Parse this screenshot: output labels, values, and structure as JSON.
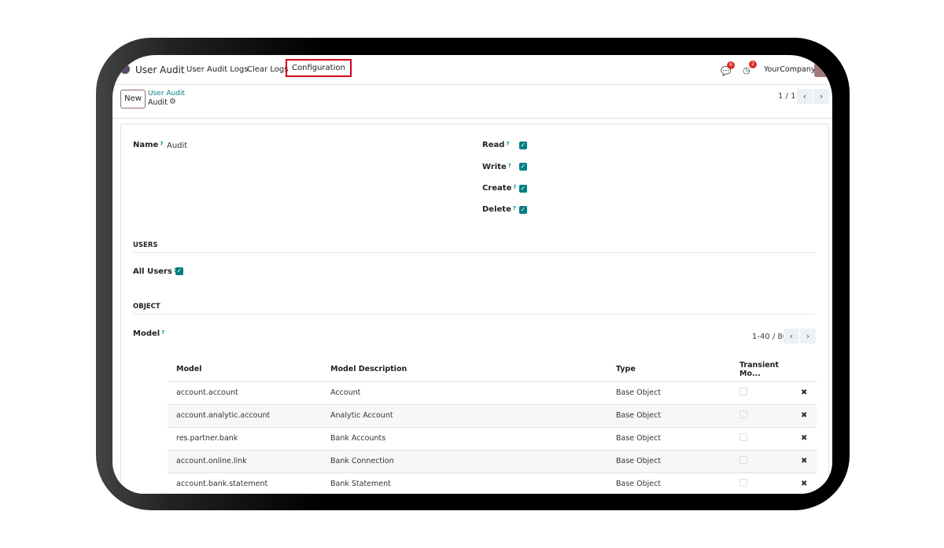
{
  "nav": {
    "app": "User Audit",
    "items": [
      "User Audit Logs",
      "Clear Logs",
      "Configuration"
    ],
    "messages_count": "6",
    "activities_count": "2",
    "company": "YourCompany"
  },
  "control": {
    "new": "New",
    "breadcrumb_parent": "User Audit",
    "breadcrumb_current": "Audit",
    "pager": "1 / 1"
  },
  "form": {
    "name_label": "Name",
    "name_value": "Audit",
    "help": "?",
    "perms": [
      {
        "label": "Read",
        "checked": true
      },
      {
        "label": "Write",
        "checked": true
      },
      {
        "label": "Create",
        "checked": true
      },
      {
        "label": "Delete",
        "checked": true
      }
    ],
    "users_section": "USERS",
    "all_users_label": "All Users",
    "all_users_checked": true,
    "object_section": "OBJECT",
    "model_label": "Model",
    "model_pager": "1-40 / 80",
    "columns": [
      "Model",
      "Model Description",
      "Type",
      "Transient Mo..."
    ],
    "rows": [
      [
        "account.account",
        "Account",
        "Base Object"
      ],
      [
        "account.analytic.account",
        "Analytic Account",
        "Base Object"
      ],
      [
        "res.partner.bank",
        "Bank Accounts",
        "Base Object"
      ],
      [
        "account.online.link",
        "Bank Connection",
        "Base Object"
      ],
      [
        "account.bank.statement",
        "Bank Statement",
        "Base Object"
      ]
    ]
  },
  "colors": {
    "accent": "#017e84",
    "highlight": "#d0021b",
    "badge": "#e02c2c"
  }
}
